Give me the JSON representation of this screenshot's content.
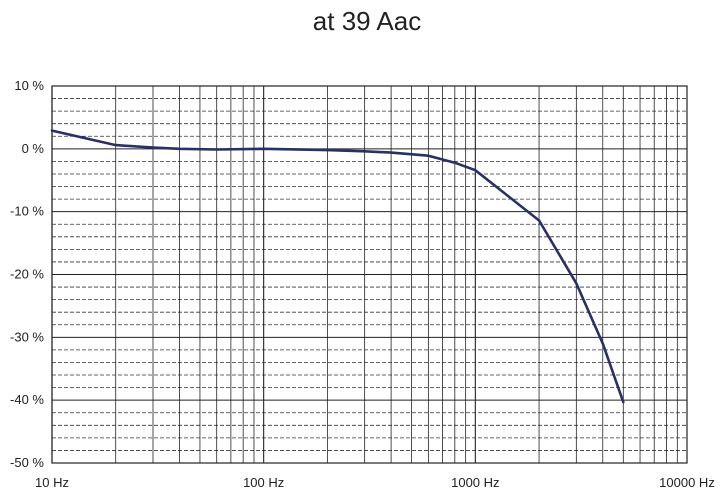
{
  "chart_data": {
    "type": "line",
    "title": "at 39 Aac",
    "xlabel": "",
    "ylabel": "",
    "x_scale": "log",
    "xlim": [
      10,
      10000
    ],
    "ylim": [
      -50,
      10
    ],
    "grid": true,
    "legend": "none",
    "x_ticks": [
      {
        "value": 10,
        "label": "10 Hz"
      },
      {
        "value": 100,
        "label": "100 Hz"
      },
      {
        "value": 1000,
        "label": "1000 Hz"
      },
      {
        "value": 10000,
        "label": "10000 Hz"
      }
    ],
    "y_ticks": [
      {
        "value": 10,
        "label": "10 %"
      },
      {
        "value": 0,
        "label": "0 %"
      },
      {
        "value": -10,
        "label": "-10 %"
      },
      {
        "value": -20,
        "label": "-20 %"
      },
      {
        "value": -30,
        "label": "-30 %"
      },
      {
        "value": -40,
        "label": "-40 %"
      },
      {
        "value": -50,
        "label": "-50 %"
      }
    ],
    "series": [
      {
        "color": "#283066",
        "x": [
          10,
          20,
          30,
          40,
          60,
          100,
          200,
          300,
          400,
          600,
          800,
          1000,
          2000,
          3000,
          4000,
          5000
        ],
        "y": [
          2.9,
          0.6,
          0.2,
          0.0,
          -0.1,
          0.0,
          -0.2,
          -0.4,
          -0.6,
          -1.1,
          -2.2,
          -3.4,
          -11.4,
          -21.4,
          -31.0,
          -40.3
        ]
      }
    ]
  }
}
